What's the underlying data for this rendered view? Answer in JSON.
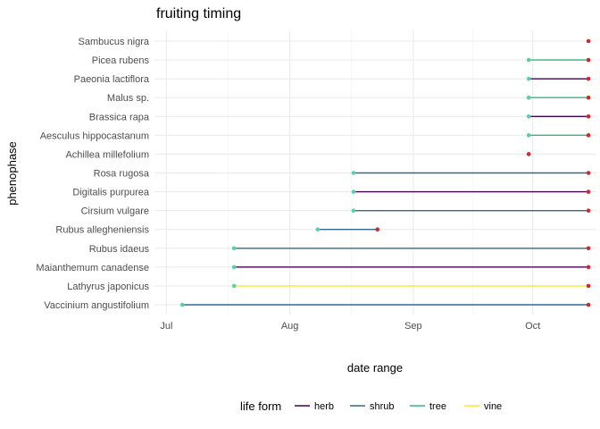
{
  "chart_data": {
    "type": "line",
    "title": "fruiting timing",
    "xlabel": "date range",
    "ylabel": "phenophase",
    "x_tick_labels": [
      "Jul",
      "Aug",
      "Sep",
      "Oct"
    ],
    "x_tick_dates": [
      "2021-07-01",
      "2021-08-01",
      "2021-09-01",
      "2021-10-01"
    ],
    "xlim": [
      "2021-06-28",
      "2021-10-17"
    ],
    "grid": true,
    "legend": {
      "title": "life form",
      "position": "bottom",
      "entries": [
        {
          "label": "herb",
          "color": "#440154"
        },
        {
          "label": "shrub",
          "color": "#31688e"
        },
        {
          "label": "tree",
          "color": "#35b779"
        },
        {
          "label": "vine",
          "color": "#fde725"
        }
      ]
    },
    "end_marker_color": "#d62728",
    "categories": [
      "Vaccinium angustifolium",
      "Lathyrus japonicus",
      "Maianthemum canadense",
      "Rubus idaeus",
      "Rubus allegheniensis",
      "Cirsium vulgare",
      "Digitalis purpurea",
      "Rosa rugosa",
      "Achillea millefolium",
      "Aesculus hippocastanum",
      "Brassica rapa",
      "Malus sp.",
      "Paeonia lactiflora",
      "Picea rubens",
      "Sambucus nigra"
    ],
    "series": [
      {
        "category": "Vaccinium angustifolium",
        "life_form": "shrub",
        "start": "2021-07-05",
        "end": "2021-10-15"
      },
      {
        "category": "Lathyrus japonicus",
        "life_form": "vine",
        "start": "2021-07-18",
        "end": "2021-10-15"
      },
      {
        "category": "Maianthemum canadense",
        "life_form": "herb",
        "start": "2021-07-18",
        "end": "2021-10-15"
      },
      {
        "category": "Rubus idaeus",
        "life_form": "shrub",
        "start": "2021-07-18",
        "end": "2021-10-15"
      },
      {
        "category": "Rubus allegheniensis",
        "life_form": "shrub",
        "start": "2021-08-08",
        "end": "2021-08-23"
      },
      {
        "category": "Cirsium vulgare",
        "life_form": "shrub",
        "start": "2021-08-17",
        "end": "2021-10-15"
      },
      {
        "category": "Digitalis purpurea",
        "life_form": "herb",
        "start": "2021-08-17",
        "end": "2021-10-15"
      },
      {
        "category": "Rosa rugosa",
        "life_form": "shrub",
        "start": "2021-08-17",
        "end": "2021-10-15"
      },
      {
        "category": "Achillea millefolium",
        "life_form": "tree",
        "start": "2021-09-30",
        "end": "2021-09-30"
      },
      {
        "category": "Aesculus hippocastanum",
        "life_form": "tree",
        "start": "2021-09-30",
        "end": "2021-10-15"
      },
      {
        "category": "Brassica rapa",
        "life_form": "herb",
        "start": "2021-09-30",
        "end": "2021-10-15"
      },
      {
        "category": "Malus sp.",
        "life_form": "tree",
        "start": "2021-09-30",
        "end": "2021-10-15"
      },
      {
        "category": "Paeonia lactiflora",
        "life_form": "herb",
        "start": "2021-09-30",
        "end": "2021-10-15"
      },
      {
        "category": "Picea rubens",
        "life_form": "tree",
        "start": "2021-09-30",
        "end": "2021-10-15"
      },
      {
        "category": "Sambucus nigra",
        "life_form": "tree",
        "start": "2021-10-15",
        "end": "2021-10-15"
      }
    ]
  }
}
